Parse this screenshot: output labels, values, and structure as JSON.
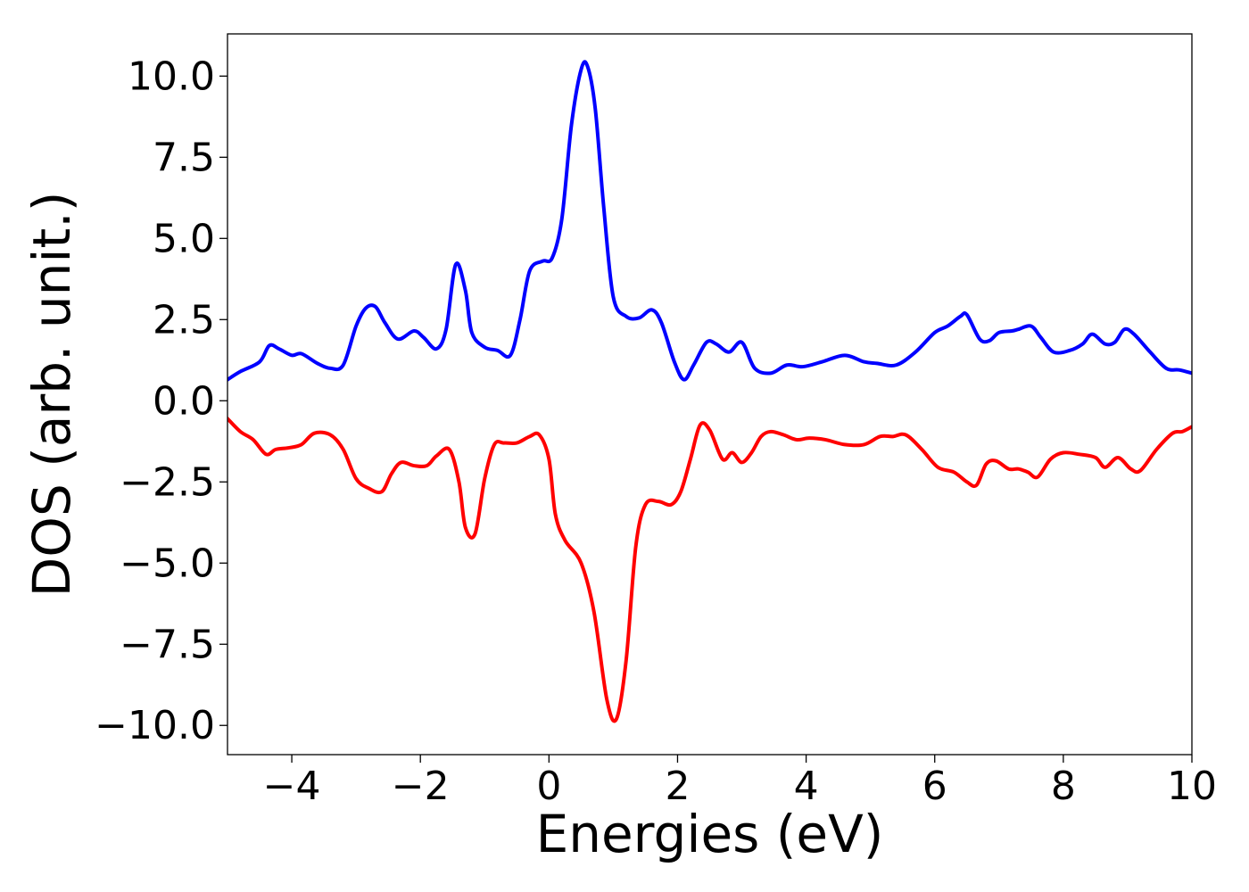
{
  "chart_data": {
    "type": "line",
    "title": "",
    "xlabel": "Energies (eV)",
    "ylabel": "DOS (arb. unit.)",
    "xlim": [
      -5,
      10
    ],
    "ylim": [
      -10.9,
      11.3
    ],
    "xticks": [
      -4,
      -2,
      0,
      2,
      4,
      6,
      8,
      10
    ],
    "xtick_labels": [
      "−4",
      "−2",
      "0",
      "2",
      "4",
      "6",
      "8",
      "10"
    ],
    "yticks": [
      10.0,
      7.5,
      5.0,
      2.5,
      0.0,
      -2.5,
      -5.0,
      -7.5,
      -10.0
    ],
    "ytick_labels": [
      "10.0",
      "7.5",
      "5.0",
      "2.5",
      "0.0",
      "−2.5",
      "−5.0",
      "−7.5",
      "−10.0"
    ],
    "grid": false,
    "legend": "none",
    "series": [
      {
        "color": "#0000ff",
        "x": [
          -5.0,
          -4.8,
          -4.5,
          -4.35,
          -4.2,
          -4.0,
          -3.85,
          -3.6,
          -3.4,
          -3.2,
          -3.0,
          -2.85,
          -2.7,
          -2.55,
          -2.35,
          -2.1,
          -1.95,
          -1.75,
          -1.6,
          -1.45,
          -1.3,
          -1.2,
          -1.0,
          -0.8,
          -0.6,
          -0.45,
          -0.3,
          -0.1,
          0.05,
          0.2,
          0.35,
          0.5,
          0.6,
          0.72,
          0.85,
          1.0,
          1.2,
          1.4,
          1.6,
          1.75,
          1.95,
          2.1,
          2.25,
          2.45,
          2.6,
          2.8,
          3.0,
          3.2,
          3.45,
          3.7,
          3.95,
          4.25,
          4.6,
          4.9,
          5.1,
          5.4,
          5.7,
          6.0,
          6.2,
          6.4,
          6.5,
          6.7,
          6.85,
          7.0,
          7.2,
          7.3,
          7.5,
          7.65,
          7.85,
          8.1,
          8.3,
          8.45,
          8.65,
          8.8,
          8.95,
          9.1,
          9.35,
          9.6,
          9.8,
          10.0
        ],
        "values": [
          0.65,
          0.9,
          1.2,
          1.7,
          1.6,
          1.4,
          1.45,
          1.15,
          1.0,
          1.1,
          2.3,
          2.85,
          2.9,
          2.4,
          1.9,
          2.15,
          1.95,
          1.6,
          2.2,
          4.2,
          3.4,
          2.1,
          1.65,
          1.55,
          1.4,
          2.5,
          4.0,
          4.3,
          4.4,
          5.6,
          8.5,
          10.2,
          10.3,
          9.0,
          6.0,
          3.2,
          2.6,
          2.55,
          2.8,
          2.4,
          1.2,
          0.65,
          1.1,
          1.8,
          1.75,
          1.5,
          1.8,
          1.0,
          0.85,
          1.1,
          1.05,
          1.2,
          1.4,
          1.2,
          1.15,
          1.1,
          1.5,
          2.1,
          2.3,
          2.6,
          2.65,
          1.9,
          1.85,
          2.1,
          2.15,
          2.2,
          2.3,
          1.95,
          1.5,
          1.55,
          1.75,
          2.05,
          1.75,
          1.8,
          2.2,
          2.05,
          1.5,
          1.0,
          0.95,
          0.85
        ]
      },
      {
        "color": "#ff0000",
        "x": [
          -5.0,
          -4.8,
          -4.6,
          -4.4,
          -4.25,
          -4.05,
          -3.85,
          -3.65,
          -3.4,
          -3.2,
          -3.0,
          -2.8,
          -2.6,
          -2.45,
          -2.3,
          -2.1,
          -1.9,
          -1.75,
          -1.55,
          -1.4,
          -1.3,
          -1.15,
          -1.0,
          -0.85,
          -0.7,
          -0.5,
          -0.3,
          -0.15,
          0.0,
          0.1,
          0.25,
          0.5,
          0.7,
          0.9,
          1.05,
          1.2,
          1.35,
          1.5,
          1.7,
          1.9,
          2.05,
          2.2,
          2.35,
          2.5,
          2.7,
          2.85,
          3.0,
          3.15,
          3.3,
          3.45,
          3.65,
          3.85,
          4.05,
          4.3,
          4.6,
          4.9,
          5.15,
          5.35,
          5.55,
          5.8,
          6.05,
          6.3,
          6.5,
          6.65,
          6.8,
          6.95,
          7.15,
          7.3,
          7.45,
          7.6,
          7.8,
          8.0,
          8.25,
          8.5,
          8.65,
          8.85,
          9.05,
          9.2,
          9.45,
          9.7,
          9.85,
          10.0
        ],
        "values": [
          -0.55,
          -0.95,
          -1.2,
          -1.65,
          -1.5,
          -1.45,
          -1.35,
          -1.0,
          -1.05,
          -1.5,
          -2.4,
          -2.7,
          -2.8,
          -2.25,
          -1.9,
          -2.0,
          -2.0,
          -1.7,
          -1.5,
          -2.5,
          -3.9,
          -4.1,
          -2.4,
          -1.35,
          -1.3,
          -1.3,
          -1.1,
          -1.05,
          -1.8,
          -3.5,
          -4.3,
          -5.0,
          -6.5,
          -9.2,
          -9.8,
          -8.0,
          -4.5,
          -3.2,
          -3.1,
          -3.2,
          -2.8,
          -1.8,
          -0.75,
          -0.9,
          -1.8,
          -1.6,
          -1.9,
          -1.6,
          -1.1,
          -0.95,
          -1.05,
          -1.2,
          -1.15,
          -1.2,
          -1.35,
          -1.35,
          -1.1,
          -1.1,
          -1.05,
          -1.5,
          -2.05,
          -2.2,
          -2.5,
          -2.6,
          -1.95,
          -1.85,
          -2.1,
          -2.1,
          -2.2,
          -2.35,
          -1.8,
          -1.6,
          -1.65,
          -1.75,
          -2.05,
          -1.75,
          -2.1,
          -2.15,
          -1.5,
          -1.0,
          -0.95,
          -0.8
        ]
      }
    ]
  }
}
